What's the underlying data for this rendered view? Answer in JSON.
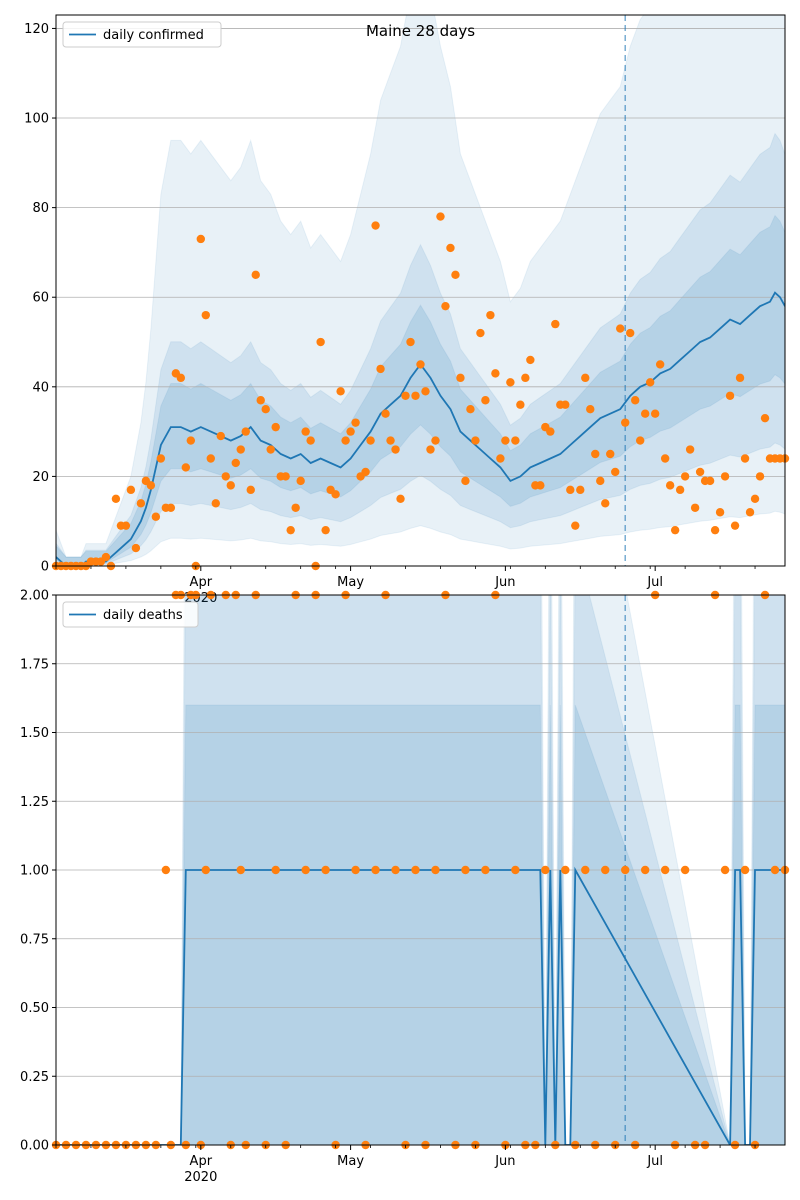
{
  "chart_data": [
    {
      "type": "line",
      "title": "Maine 28 days",
      "x_axis": {
        "type": "date",
        "range": [
          "2020-03-03",
          "2020-07-27"
        ],
        "tick_labels": [
          {
            "date": "2020-04-01",
            "label": "Apr",
            "sublabel": "2020"
          },
          {
            "date": "2020-05-01",
            "label": "May"
          },
          {
            "date": "2020-06-01",
            "label": "Jun"
          },
          {
            "date": "2020-07-01",
            "label": "Jul"
          }
        ]
      },
      "ylim": [
        0,
        123
      ],
      "yticks": [
        "0",
        "20",
        "40",
        "60",
        "80",
        "100",
        "120"
      ],
      "grid": "horizontal",
      "legend_position": "top-left",
      "forecast_start": "2020-06-25",
      "series": [
        {
          "name": "daily confirmed",
          "kind": "line",
          "color": "#1f77b4",
          "x": [
            "2020-03-03",
            "2020-03-04",
            "2020-03-05",
            "2020-03-06",
            "2020-03-07",
            "2020-03-08",
            "2020-03-09",
            "2020-03-10",
            "2020-03-11",
            "2020-03-12",
            "2020-03-13",
            "2020-03-14",
            "2020-03-15",
            "2020-03-16",
            "2020-03-17",
            "2020-03-18",
            "2020-03-19",
            "2020-03-20",
            "2020-03-21",
            "2020-03-22",
            "2020-03-23",
            "2020-03-24",
            "2020-03-26",
            "2020-03-28",
            "2020-03-30",
            "2020-04-01",
            "2020-04-03",
            "2020-04-05",
            "2020-04-07",
            "2020-04-09",
            "2020-04-11",
            "2020-04-13",
            "2020-04-15",
            "2020-04-17",
            "2020-04-19",
            "2020-04-21",
            "2020-04-23",
            "2020-04-25",
            "2020-04-27",
            "2020-04-29",
            "2020-05-01",
            "2020-05-03",
            "2020-05-05",
            "2020-05-07",
            "2020-05-09",
            "2020-05-11",
            "2020-05-13",
            "2020-05-15",
            "2020-05-17",
            "2020-05-19",
            "2020-05-21",
            "2020-05-23",
            "2020-05-25",
            "2020-05-27",
            "2020-05-29",
            "2020-05-31",
            "2020-06-02",
            "2020-06-04",
            "2020-06-06",
            "2020-06-08",
            "2020-06-10",
            "2020-06-12",
            "2020-06-14",
            "2020-06-16",
            "2020-06-18",
            "2020-06-20",
            "2020-06-22",
            "2020-06-24",
            "2020-06-26",
            "2020-06-28",
            "2020-06-30",
            "2020-07-02",
            "2020-07-04",
            "2020-07-06",
            "2020-07-08",
            "2020-07-10",
            "2020-07-12",
            "2020-07-14",
            "2020-07-16",
            "2020-07-18",
            "2020-07-20",
            "2020-07-22",
            "2020-07-24",
            "2020-07-25",
            "2020-07-26",
            "2020-07-27"
          ],
          "y": [
            2,
            1,
            0,
            0,
            0,
            0,
            1,
            1,
            1,
            1,
            1,
            2,
            3,
            4,
            5,
            6,
            8,
            10,
            13,
            17,
            22,
            27,
            31,
            31,
            30,
            31,
            30,
            29,
            28,
            29,
            31,
            28,
            27,
            25,
            24,
            25,
            23,
            24,
            23,
            22,
            24,
            27,
            30,
            34,
            36,
            38,
            42,
            45,
            42,
            38,
            35,
            30,
            28,
            26,
            24,
            22,
            19,
            20,
            22,
            23,
            24,
            25,
            27,
            29,
            31,
            33,
            34,
            35,
            38,
            40,
            41,
            43,
            44,
            46,
            48,
            50,
            51,
            53,
            55,
            54,
            56,
            58,
            59,
            61,
            60,
            58
          ]
        },
        {
          "name": "",
          "kind": "scatter",
          "color": "#ff7f0e",
          "x": [
            "2020-03-03",
            "2020-03-04",
            "2020-03-05",
            "2020-03-06",
            "2020-03-07",
            "2020-03-08",
            "2020-03-09",
            "2020-03-10",
            "2020-03-11",
            "2020-03-12",
            "2020-03-13",
            "2020-03-14",
            "2020-03-15",
            "2020-03-16",
            "2020-03-17",
            "2020-03-18",
            "2020-03-19",
            "2020-03-20",
            "2020-03-21",
            "2020-03-22",
            "2020-03-23",
            "2020-03-24",
            "2020-03-25",
            "2020-03-26",
            "2020-03-27",
            "2020-03-28",
            "2020-03-29",
            "2020-03-30",
            "2020-03-31",
            "2020-04-01",
            "2020-04-02",
            "2020-04-03",
            "2020-04-04",
            "2020-04-05",
            "2020-04-06",
            "2020-04-07",
            "2020-04-08",
            "2020-04-09",
            "2020-04-10",
            "2020-04-11",
            "2020-04-12",
            "2020-04-13",
            "2020-04-14",
            "2020-04-15",
            "2020-04-16",
            "2020-04-17",
            "2020-04-18",
            "2020-04-19",
            "2020-04-20",
            "2020-04-21",
            "2020-04-22",
            "2020-04-23",
            "2020-04-24",
            "2020-04-25",
            "2020-04-26",
            "2020-04-27",
            "2020-04-28",
            "2020-04-29",
            "2020-04-30",
            "2020-05-01",
            "2020-05-02",
            "2020-05-03",
            "2020-05-04",
            "2020-05-05",
            "2020-05-06",
            "2020-05-07",
            "2020-05-08",
            "2020-05-09",
            "2020-05-10",
            "2020-05-11",
            "2020-05-12",
            "2020-05-13",
            "2020-05-14",
            "2020-05-15",
            "2020-05-16",
            "2020-05-17",
            "2020-05-18",
            "2020-05-19",
            "2020-05-20",
            "2020-05-21",
            "2020-05-22",
            "2020-05-23",
            "2020-05-24",
            "2020-05-25",
            "2020-05-26",
            "2020-05-27",
            "2020-05-28",
            "2020-05-29",
            "2020-05-30",
            "2020-05-31",
            "2020-06-01",
            "2020-06-02",
            "2020-06-03",
            "2020-06-04",
            "2020-06-05",
            "2020-06-06",
            "2020-06-07",
            "2020-06-08",
            "2020-06-09",
            "2020-06-10",
            "2020-06-11",
            "2020-06-12",
            "2020-06-13",
            "2020-06-14",
            "2020-06-15",
            "2020-06-16",
            "2020-06-17",
            "2020-06-18",
            "2020-06-19",
            "2020-06-20",
            "2020-06-21",
            "2020-06-22",
            "2020-06-23",
            "2020-06-24",
            "2020-06-25",
            "2020-06-26",
            "2020-06-27",
            "2020-06-28",
            "2020-06-29",
            "2020-06-30",
            "2020-07-01",
            "2020-07-02",
            "2020-07-03",
            "2020-07-04",
            "2020-07-05",
            "2020-07-06",
            "2020-07-07",
            "2020-07-08",
            "2020-07-09",
            "2020-07-10",
            "2020-07-11",
            "2020-07-12",
            "2020-07-13",
            "2020-07-14",
            "2020-07-15",
            "2020-07-16",
            "2020-07-17",
            "2020-07-18",
            "2020-07-19",
            "2020-07-20",
            "2020-07-21",
            "2020-07-22",
            "2020-07-23",
            "2020-07-24",
            "2020-07-25",
            "2020-07-26",
            "2020-07-27"
          ],
          "y": [
            0,
            0,
            0,
            0,
            0,
            0,
            0,
            1,
            1,
            1,
            2,
            0,
            15,
            9,
            9,
            17,
            4,
            14,
            19,
            18,
            11,
            24,
            13,
            13,
            43,
            42,
            22,
            28,
            0,
            73,
            56,
            24,
            14,
            29,
            20,
            18,
            23,
            26,
            30,
            17,
            65,
            37,
            35,
            26,
            31,
            20,
            20,
            8,
            13,
            19,
            30,
            28,
            0,
            50,
            8,
            17,
            16,
            39,
            28,
            30,
            32,
            20,
            21,
            28,
            76,
            44,
            34,
            28,
            26,
            15,
            38,
            50,
            38,
            45,
            39,
            26,
            28,
            78,
            58,
            71,
            65,
            42,
            19,
            35,
            28,
            52,
            37,
            56,
            43,
            24,
            28,
            41,
            28,
            36,
            42,
            46,
            18,
            18,
            31,
            30,
            54,
            36,
            36,
            17,
            9,
            17,
            42,
            35,
            25,
            19,
            14,
            25,
            21,
            53,
            32,
            52,
            37,
            28,
            34,
            41,
            34,
            45,
            24,
            18,
            8,
            17,
            20,
            26,
            13,
            21,
            19,
            19,
            8,
            12,
            20,
            38,
            9,
            42,
            24,
            12,
            15,
            20,
            33,
            24,
            24,
            24,
            24
          ]
        }
      ]
    },
    {
      "type": "line",
      "title": "",
      "x_axis": {
        "type": "date",
        "range": [
          "2020-03-03",
          "2020-07-27"
        ],
        "tick_labels": [
          {
            "date": "2020-04-01",
            "label": "Apr",
            "sublabel": "2020"
          },
          {
            "date": "2020-05-01",
            "label": "May"
          },
          {
            "date": "2020-06-01",
            "label": "Jun"
          },
          {
            "date": "2020-07-01",
            "label": "Jul"
          }
        ]
      },
      "ylim": [
        0,
        2
      ],
      "yticks": [
        "0.00",
        "0.25",
        "0.50",
        "0.75",
        "1.00",
        "1.25",
        "1.50",
        "1.75",
        "2.00"
      ],
      "grid": "horizontal",
      "legend_position": "top-left",
      "forecast_start": "2020-06-25",
      "series": [
        {
          "name": "daily deaths",
          "kind": "line",
          "color": "#1f77b4",
          "x": [
            "2020-03-03",
            "2020-03-28",
            "2020-03-29",
            "2020-06-08",
            "2020-06-09",
            "2020-06-10",
            "2020-06-11",
            "2020-06-12",
            "2020-06-13",
            "2020-06-14",
            "2020-06-15",
            "2020-07-16",
            "2020-07-17",
            "2020-07-18",
            "2020-07-19",
            "2020-07-20",
            "2020-07-21",
            "2020-07-22",
            "2020-07-23",
            "2020-07-27"
          ],
          "y": [
            0,
            0,
            1,
            1,
            0,
            1,
            0,
            1,
            0,
            0,
            1,
            0,
            1,
            1,
            0,
            0,
            1,
            1,
            1,
            1
          ]
        },
        {
          "name": "",
          "kind": "scatter",
          "color": "#ff7f0e",
          "x": [
            "2020-03-03",
            "2020-03-05",
            "2020-03-07",
            "2020-03-09",
            "2020-03-11",
            "2020-03-13",
            "2020-03-15",
            "2020-03-17",
            "2020-03-19",
            "2020-03-21",
            "2020-03-23",
            "2020-03-25",
            "2020-03-26",
            "2020-03-27",
            "2020-03-28",
            "2020-03-29",
            "2020-03-30",
            "2020-03-31",
            "2020-04-01",
            "2020-04-02",
            "2020-04-03",
            "2020-04-06",
            "2020-04-07",
            "2020-04-08",
            "2020-04-09",
            "2020-04-10",
            "2020-04-12",
            "2020-04-14",
            "2020-04-16",
            "2020-04-18",
            "2020-04-20",
            "2020-04-22",
            "2020-04-24",
            "2020-04-26",
            "2020-04-28",
            "2020-04-30",
            "2020-05-02",
            "2020-05-04",
            "2020-05-06",
            "2020-05-08",
            "2020-05-10",
            "2020-05-12",
            "2020-05-14",
            "2020-05-16",
            "2020-05-18",
            "2020-05-20",
            "2020-05-22",
            "2020-05-24",
            "2020-05-26",
            "2020-05-28",
            "2020-05-30",
            "2020-06-01",
            "2020-06-03",
            "2020-06-05",
            "2020-06-07",
            "2020-06-09",
            "2020-06-11",
            "2020-06-13",
            "2020-06-15",
            "2020-06-17",
            "2020-06-19",
            "2020-06-21",
            "2020-06-23",
            "2020-06-25",
            "2020-06-27",
            "2020-06-29",
            "2020-07-01",
            "2020-07-03",
            "2020-07-05",
            "2020-07-07",
            "2020-07-09",
            "2020-07-11",
            "2020-07-13",
            "2020-07-15",
            "2020-07-17",
            "2020-07-19",
            "2020-07-21",
            "2020-07-23",
            "2020-07-25",
            "2020-07-27"
          ],
          "y": [
            0,
            0,
            0,
            0,
            0,
            0,
            0,
            0,
            0,
            0,
            0,
            1,
            0,
            2,
            2,
            0,
            2,
            2,
            0,
            1,
            2,
            2,
            0,
            2,
            1,
            0,
            2,
            0,
            1,
            0,
            2,
            1,
            2,
            1,
            0,
            2,
            1,
            0,
            1,
            2,
            1,
            0,
            1,
            0,
            1,
            2,
            0,
            1,
            0,
            1,
            2,
            0,
            1,
            0,
            0,
            1,
            0,
            1,
            0,
            1,
            0,
            1,
            0,
            1,
            0,
            1,
            2,
            1,
            0,
            1,
            0,
            0,
            2,
            1,
            0,
            1,
            0,
            2,
            1,
            1
          ]
        }
      ]
    }
  ]
}
